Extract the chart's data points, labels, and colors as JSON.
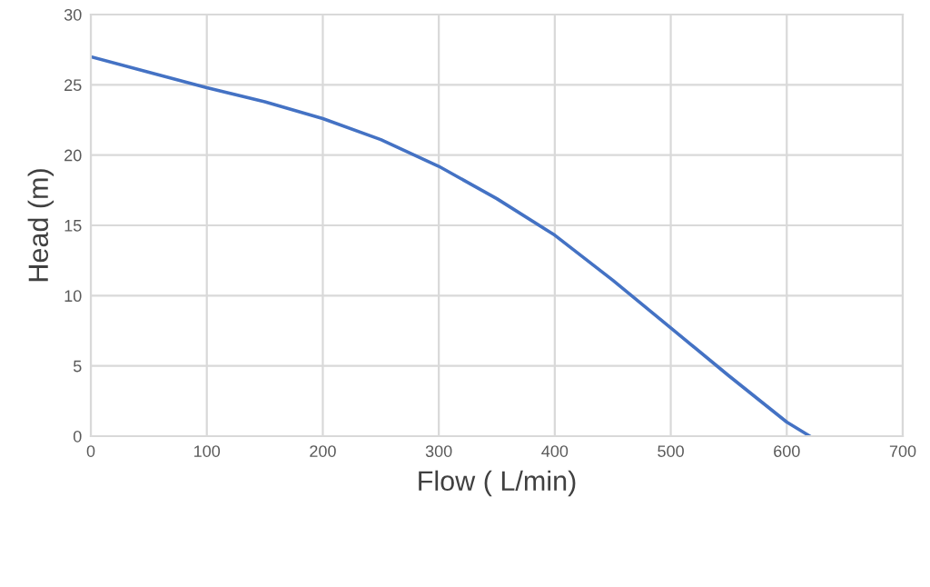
{
  "chart_data": {
    "type": "line",
    "xlabel": "Flow ( L/min)",
    "ylabel": "Head (m)",
    "x": [
      0,
      50,
      100,
      150,
      200,
      250,
      300,
      350,
      400,
      450,
      500,
      550,
      600,
      620
    ],
    "series": [
      {
        "color": "#4472c4",
        "values": [
          27,
          25.9,
          24.8,
          23.8,
          22.6,
          21.1,
          19.2,
          16.9,
          14.3,
          11.1,
          7.7,
          4.3,
          1.0,
          0
        ]
      }
    ],
    "xlim": [
      0,
      700
    ],
    "xticks": [
      0,
      100,
      200,
      300,
      400,
      500,
      600,
      700
    ],
    "ylim": [
      0,
      30
    ],
    "yticks": [
      0,
      5,
      10,
      15,
      20,
      25,
      30
    ],
    "grid": true,
    "marker": "none",
    "line_style": "solid"
  }
}
